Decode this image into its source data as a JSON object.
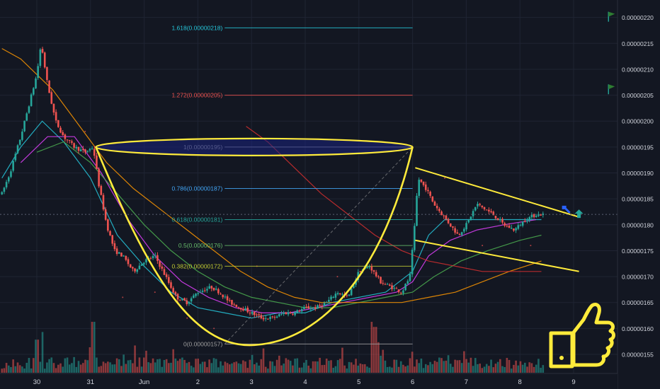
{
  "chart_data": {
    "type": "candlestick",
    "instrument_scale": "satoshi-priced crypto pair",
    "colors": {
      "background": "#131722",
      "up": "#26a69a",
      "down": "#ef5350",
      "pattern": "#ffeb3b",
      "grid": "#1f2433",
      "axis_text": "#d1d4dc"
    },
    "y_axis": {
      "position": "right",
      "range": [
        1.52e-06,
        2.22e-06
      ],
      "ticks": [
        "0.00000155",
        "0.00000160",
        "0.00000165",
        "0.00000170",
        "0.00000175",
        "0.00000180",
        "0.00000185",
        "0.00000190",
        "0.00000195",
        "0.00000200",
        "0.00000205",
        "0.00000210",
        "0.00000215",
        "0.00000220"
      ]
    },
    "x_axis": {
      "ticks": [
        {
          "label": "30",
          "day": 0
        },
        {
          "label": "31",
          "day": 1
        },
        {
          "label": "Jun",
          "day": 2
        },
        {
          "label": "2",
          "day": 3
        },
        {
          "label": "3",
          "day": 4
        },
        {
          "label": "4",
          "day": 5
        },
        {
          "label": "5",
          "day": 6
        },
        {
          "label": "6",
          "day": 7
        },
        {
          "label": "7",
          "day": 8
        },
        {
          "label": "8",
          "day": 9
        },
        {
          "label": "9",
          "day": 10
        }
      ]
    },
    "current_price": 1.82e-06,
    "fibonacci": {
      "start_day": 3.5,
      "end_day": 7.0,
      "levels": [
        {
          "label": "1.618(0.00000218)",
          "value": 2.18e-06,
          "color": "#26c6da"
        },
        {
          "label": "1.272(0.00000205)",
          "value": 2.05e-06,
          "color": "#ef5350"
        },
        {
          "label": "1(0.00000195)",
          "value": 1.95e-06,
          "color": "#9e9e9e"
        },
        {
          "label": "0.786(0.00000187)",
          "value": 1.87e-06,
          "color": "#42a5f5"
        },
        {
          "label": "0.618(0.00000181)",
          "value": 1.81e-06,
          "color": "#26a69a"
        },
        {
          "label": "0.5(0.00000176)",
          "value": 1.76e-06,
          "color": "#66bb6a"
        },
        {
          "label": "0.382(0.00000172)",
          "value": 1.72e-06,
          "color": "#c0ca33"
        },
        {
          "label": "0(0.00000157)",
          "value": 1.57e-06,
          "color": "#9e9e9e"
        }
      ]
    },
    "cup": {
      "rim_left": {
        "day": 1.1,
        "price": 1.95e-06
      },
      "rim_right": {
        "day": 7.0,
        "price": 1.95e-06
      },
      "bottom": {
        "day": 4.05,
        "price": 1.568e-06
      }
    },
    "wedge": {
      "upper": [
        {
          "day": 7.05,
          "price": 1.91e-06
        },
        {
          "day": 10.1,
          "price": 1.815e-06
        }
      ],
      "lower": [
        {
          "day": 7.05,
          "price": 1.77e-06
        },
        {
          "day": 10.1,
          "price": 1.71e-06
        }
      ]
    },
    "flags": [
      {
        "day": 10.65,
        "price": 2.2e-06
      },
      {
        "day": 10.65,
        "price": 2.06e-06
      }
    ],
    "markers": [
      {
        "day": 9.85,
        "price": 1.83e-06,
        "type": "hammer-icon",
        "color": "#2962ff"
      },
      {
        "day": 10.1,
        "price": 1.82e-06,
        "type": "arrow-up-icon",
        "color": "#26a69a"
      }
    ],
    "moving_averages": [
      {
        "color": "#26c6da",
        "points": [
          [
            -0.65,
            1.89e-06
          ],
          [
            -0.3,
            1.95e-06
          ],
          [
            0.1,
            2e-06
          ],
          [
            0.5,
            1.96e-06
          ],
          [
            1.0,
            1.89e-06
          ],
          [
            1.5,
            1.78e-06
          ],
          [
            2.0,
            1.72e-06
          ],
          [
            2.5,
            1.67e-06
          ],
          [
            3.0,
            1.64e-06
          ],
          [
            3.5,
            1.63e-06
          ],
          [
            4.0,
            1.62e-06
          ],
          [
            4.5,
            1.63e-06
          ],
          [
            5.0,
            1.63e-06
          ],
          [
            5.5,
            1.65e-06
          ],
          [
            6.0,
            1.66e-06
          ],
          [
            6.5,
            1.67e-06
          ],
          [
            7.0,
            1.71e-06
          ],
          [
            7.3,
            1.78e-06
          ],
          [
            7.6,
            1.81e-06
          ],
          [
            8.0,
            1.81e-06
          ],
          [
            8.5,
            1.81e-06
          ],
          [
            9.0,
            1.81e-06
          ],
          [
            9.4,
            1.81e-06
          ]
        ]
      },
      {
        "color": "#e040fb",
        "points": [
          [
            -0.3,
            1.92e-06
          ],
          [
            0.2,
            1.97e-06
          ],
          [
            0.7,
            1.97e-06
          ],
          [
            1.2,
            1.9e-06
          ],
          [
            1.7,
            1.81e-06
          ],
          [
            2.2,
            1.74e-06
          ],
          [
            2.7,
            1.69e-06
          ],
          [
            3.2,
            1.66e-06
          ],
          [
            3.7,
            1.64e-06
          ],
          [
            4.2,
            1.63e-06
          ],
          [
            4.7,
            1.63e-06
          ],
          [
            5.2,
            1.64e-06
          ],
          [
            5.7,
            1.65e-06
          ],
          [
            6.2,
            1.66e-06
          ],
          [
            6.7,
            1.67e-06
          ],
          [
            7.0,
            1.69e-06
          ],
          [
            7.3,
            1.74e-06
          ],
          [
            7.7,
            1.77e-06
          ],
          [
            8.2,
            1.79e-06
          ],
          [
            8.7,
            1.8e-06
          ],
          [
            9.3,
            1.81e-06
          ]
        ]
      },
      {
        "color": "#4caf50",
        "points": [
          [
            0.0,
            1.94e-06
          ],
          [
            0.5,
            1.96e-06
          ],
          [
            1.0,
            1.92e-06
          ],
          [
            1.5,
            1.86e-06
          ],
          [
            2.0,
            1.8e-06
          ],
          [
            2.5,
            1.75e-06
          ],
          [
            3.0,
            1.71e-06
          ],
          [
            3.5,
            1.68e-06
          ],
          [
            4.0,
            1.66e-06
          ],
          [
            4.5,
            1.65e-06
          ],
          [
            5.0,
            1.64e-06
          ],
          [
            5.5,
            1.64e-06
          ],
          [
            6.0,
            1.65e-06
          ],
          [
            6.5,
            1.66e-06
          ],
          [
            7.0,
            1.67e-06
          ],
          [
            7.4,
            1.7e-06
          ],
          [
            7.9,
            1.73e-06
          ],
          [
            8.4,
            1.75e-06
          ],
          [
            9.0,
            1.77e-06
          ],
          [
            9.4,
            1.78e-06
          ]
        ]
      },
      {
        "color": "#ff9800",
        "points": [
          [
            -0.65,
            2.14e-06
          ],
          [
            -0.3,
            2.12e-06
          ],
          [
            0.3,
            2.06e-06
          ],
          [
            0.8,
            1.99e-06
          ],
          [
            1.3,
            1.92e-06
          ],
          [
            1.8,
            1.87e-06
          ],
          [
            2.3,
            1.83e-06
          ],
          [
            2.8,
            1.79e-06
          ],
          [
            3.3,
            1.75e-06
          ],
          [
            3.8,
            1.71e-06
          ],
          [
            4.3,
            1.68e-06
          ],
          [
            4.8,
            1.66e-06
          ],
          [
            5.3,
            1.65e-06
          ],
          [
            5.8,
            1.65e-06
          ],
          [
            6.3,
            1.65e-06
          ],
          [
            6.8,
            1.65e-06
          ],
          [
            7.3,
            1.66e-06
          ],
          [
            7.8,
            1.67e-06
          ],
          [
            8.3,
            1.69e-06
          ],
          [
            8.8,
            1.71e-06
          ],
          [
            9.4,
            1.73e-06
          ]
        ]
      },
      {
        "color": "#d32f2f",
        "points": [
          [
            3.9,
            1.99e-06
          ],
          [
            4.3,
            1.96e-06
          ],
          [
            4.8,
            1.91e-06
          ],
          [
            5.3,
            1.86e-06
          ],
          [
            5.8,
            1.82e-06
          ],
          [
            6.3,
            1.78e-06
          ],
          [
            6.8,
            1.75e-06
          ],
          [
            7.3,
            1.73e-06
          ],
          [
            7.8,
            1.72e-06
          ],
          [
            8.3,
            1.71e-06
          ],
          [
            8.8,
            1.71e-06
          ],
          [
            9.4,
            1.71e-06
          ]
        ]
      }
    ],
    "candle_anchors": [
      [
        -0.65,
        1.86e-06
      ],
      [
        -0.5,
        1.9e-06
      ],
      [
        -0.3,
        1.97e-06
      ],
      [
        -0.15,
        2.03e-06
      ],
      [
        0.0,
        2.09e-06
      ],
      [
        0.08,
        2.15e-06
      ],
      [
        0.2,
        2.07e-06
      ],
      [
        0.35,
        2e-06
      ],
      [
        0.5,
        1.97e-06
      ],
      [
        0.7,
        1.95e-06
      ],
      [
        0.9,
        1.94e-06
      ],
      [
        1.05,
        1.95e-06
      ],
      [
        1.15,
        1.88e-06
      ],
      [
        1.3,
        1.8e-06
      ],
      [
        1.45,
        1.75e-06
      ],
      [
        1.6,
        1.74e-06
      ],
      [
        1.8,
        1.71e-06
      ],
      [
        2.0,
        1.73e-06
      ],
      [
        2.2,
        1.74e-06
      ],
      [
        2.4,
        1.7e-06
      ],
      [
        2.6,
        1.66e-06
      ],
      [
        2.8,
        1.65e-06
      ],
      [
        3.0,
        1.67e-06
      ],
      [
        3.25,
        1.68e-06
      ],
      [
        3.4,
        1.67e-06
      ],
      [
        3.6,
        1.65e-06
      ],
      [
        3.8,
        1.64e-06
      ],
      [
        4.0,
        1.63e-06
      ],
      [
        4.2,
        1.62e-06
      ],
      [
        4.4,
        1.62e-06
      ],
      [
        4.6,
        1.63e-06
      ],
      [
        4.8,
        1.63e-06
      ],
      [
        5.0,
        1.64e-06
      ],
      [
        5.2,
        1.64e-06
      ],
      [
        5.4,
        1.65e-06
      ],
      [
        5.6,
        1.67e-06
      ],
      [
        5.8,
        1.66e-06
      ],
      [
        6.0,
        1.71e-06
      ],
      [
        6.2,
        1.72e-06
      ],
      [
        6.4,
        1.69e-06
      ],
      [
        6.6,
        1.68e-06
      ],
      [
        6.8,
        1.67e-06
      ],
      [
        6.95,
        1.7e-06
      ],
      [
        7.05,
        1.81e-06
      ],
      [
        7.1,
        1.89e-06
      ],
      [
        7.25,
        1.87e-06
      ],
      [
        7.4,
        1.84e-06
      ],
      [
        7.55,
        1.82e-06
      ],
      [
        7.7,
        1.8e-06
      ],
      [
        7.85,
        1.78e-06
      ],
      [
        8.0,
        1.8e-06
      ],
      [
        8.2,
        1.84e-06
      ],
      [
        8.35,
        1.83e-06
      ],
      [
        8.5,
        1.82e-06
      ],
      [
        8.7,
        1.8e-06
      ],
      [
        8.9,
        1.79e-06
      ],
      [
        9.1,
        1.81e-06
      ],
      [
        9.3,
        1.82e-06
      ],
      [
        9.45,
        1.82e-06
      ]
    ],
    "volume_spikes": [
      [
        0.0,
        0.65
      ],
      [
        0.1,
        0.8
      ],
      [
        1.0,
        0.5
      ],
      [
        1.05,
        1.0
      ],
      [
        4.0,
        0.35
      ],
      [
        6.25,
        1.0
      ],
      [
        6.3,
        0.9
      ],
      [
        6.35,
        0.6
      ],
      [
        6.45,
        0.45
      ]
    ]
  }
}
